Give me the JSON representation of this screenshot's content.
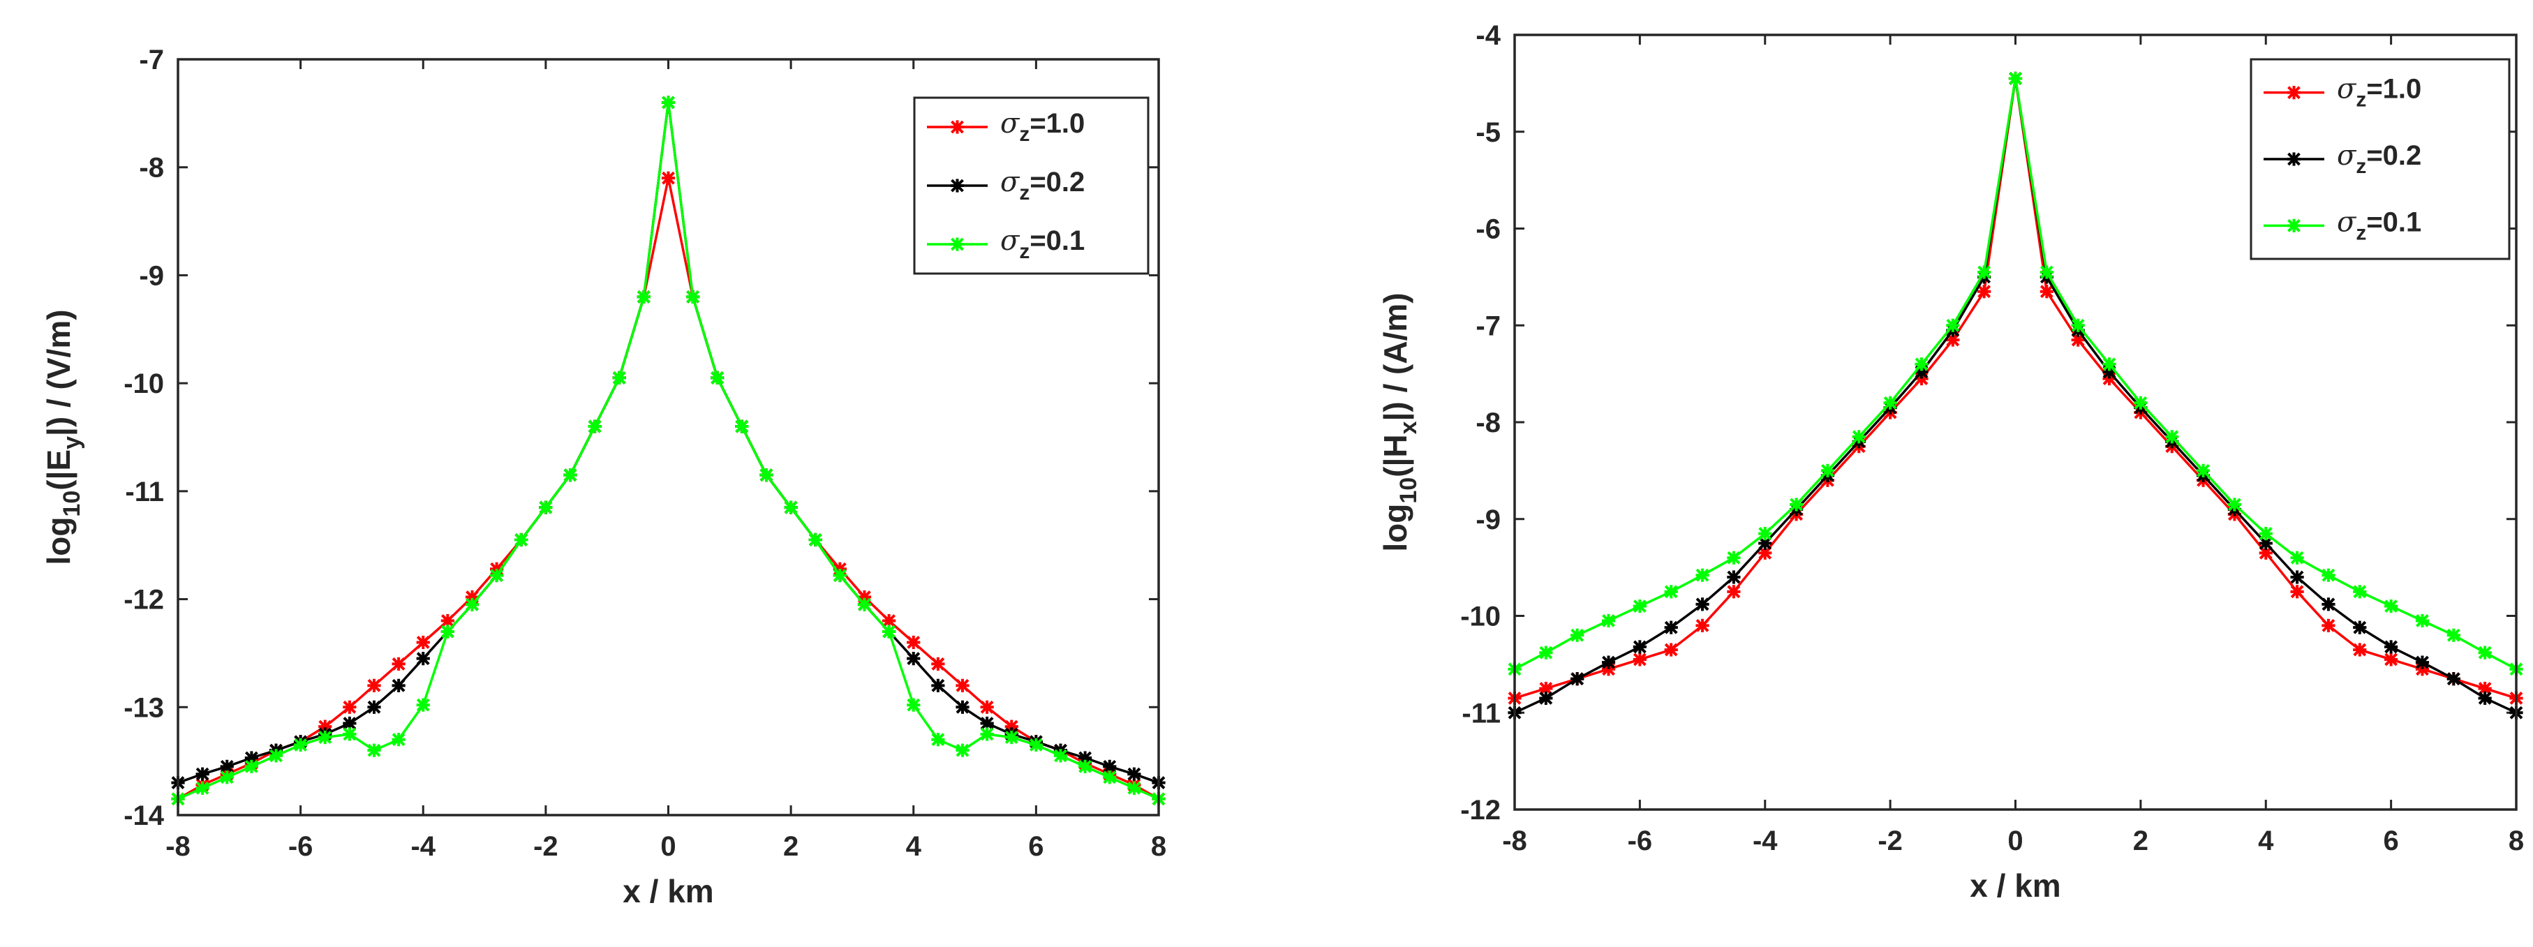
{
  "chart_data": [
    {
      "type": "line",
      "ylabel_parts": {
        "pre": "log",
        "sub10": "10",
        "mid": "(|E",
        "subvar": "y",
        "post": "|) / (V/m)"
      },
      "ylabel": "log10(|Ey|) / (V/m)",
      "xlabel": "x / km",
      "xlim": [
        -8,
        8
      ],
      "ylim": [
        -14,
        -7
      ],
      "xticks": [
        -8,
        -6,
        -4,
        -2,
        0,
        2,
        4,
        6,
        8
      ],
      "yticks": [
        -14,
        -13,
        -12,
        -11,
        -10,
        -9,
        -8,
        -7
      ],
      "legend_position": "top-right",
      "x": [
        -8.0,
        -7.6,
        -7.2,
        -6.8,
        -6.4,
        -6.0,
        -5.6,
        -5.2,
        -4.8,
        -4.4,
        -4.0,
        -3.6,
        -3.2,
        -2.8,
        -2.4,
        -2.0,
        -1.6,
        -1.2,
        -0.8,
        -0.4,
        0.0,
        0.4,
        0.8,
        1.2,
        1.6,
        2.0,
        2.4,
        2.8,
        3.2,
        3.6,
        4.0,
        4.4,
        4.8,
        5.2,
        5.6,
        6.0,
        6.4,
        6.8,
        7.2,
        7.6,
        8.0
      ],
      "series": [
        {
          "name": "σz=1.0",
          "label_parts": {
            "sym": "σ",
            "sub": "z",
            "val": "=1.0"
          },
          "color": "#ff0000",
          "values": [
            -13.85,
            -13.72,
            -13.62,
            -13.52,
            -13.4,
            -13.32,
            -13.18,
            -13.0,
            -12.8,
            -12.6,
            -12.4,
            -12.2,
            -11.98,
            -11.72,
            -11.45,
            -11.15,
            -10.85,
            -10.4,
            -9.95,
            -9.2,
            -8.1,
            -9.2,
            -9.95,
            -10.4,
            -10.85,
            -11.15,
            -11.45,
            -11.72,
            -11.98,
            -12.2,
            -12.4,
            -12.6,
            -12.8,
            -13.0,
            -13.18,
            -13.32,
            -13.4,
            -13.52,
            -13.62,
            -13.72,
            -13.85
          ]
        },
        {
          "name": "σz=0.2",
          "label_parts": {
            "sym": "σ",
            "sub": "z",
            "val": "=0.2"
          },
          "color": "#000000",
          "values": [
            -13.7,
            -13.62,
            -13.55,
            -13.47,
            -13.4,
            -13.32,
            -13.25,
            -13.15,
            -13.0,
            -12.8,
            -12.55,
            -12.3,
            -12.05,
            -11.78,
            -11.45,
            -11.15,
            -10.85,
            -10.4,
            -9.95,
            -9.2,
            -7.4,
            -9.2,
            -9.95,
            -10.4,
            -10.85,
            -11.15,
            -11.45,
            -11.78,
            -12.05,
            -12.3,
            -12.55,
            -12.8,
            -13.0,
            -13.15,
            -13.25,
            -13.32,
            -13.4,
            -13.47,
            -13.55,
            -13.62,
            -13.7
          ]
        },
        {
          "name": "σz=0.1",
          "label_parts": {
            "sym": "σ",
            "sub": "z",
            "val": "=0.1"
          },
          "color": "#00ff00",
          "values": [
            -13.85,
            -13.75,
            -13.65,
            -13.55,
            -13.45,
            -13.35,
            -13.28,
            -13.25,
            -13.4,
            -13.3,
            -12.98,
            -12.3,
            -12.05,
            -11.78,
            -11.45,
            -11.15,
            -10.85,
            -10.4,
            -9.95,
            -9.2,
            -7.4,
            -9.2,
            -9.95,
            -10.4,
            -10.85,
            -11.15,
            -11.45,
            -11.78,
            -12.05,
            -12.3,
            -12.98,
            -13.3,
            -13.4,
            -13.25,
            -13.28,
            -13.35,
            -13.45,
            -13.55,
            -13.65,
            -13.75,
            -13.85
          ]
        }
      ]
    },
    {
      "type": "line",
      "ylabel_parts": {
        "pre": "log",
        "sub10": "10",
        "mid": "(|H",
        "subvar": "x",
        "post": "|) / (A/m)"
      },
      "ylabel": "log10(|Hx|) / (A/m)",
      "xlabel": "x / km",
      "xlim": [
        -8,
        8
      ],
      "ylim": [
        -12,
        -4
      ],
      "xticks": [
        -8,
        -6,
        -4,
        -2,
        0,
        2,
        4,
        6,
        8
      ],
      "yticks": [
        -12,
        -11,
        -10,
        -9,
        -8,
        -7,
        -6,
        -5,
        -4
      ],
      "legend_position": "top-right",
      "x": [
        -8.0,
        -7.5,
        -7.0,
        -6.5,
        -6.0,
        -5.5,
        -5.0,
        -4.5,
        -4.0,
        -3.5,
        -3.0,
        -2.5,
        -2.0,
        -1.5,
        -1.0,
        -0.5,
        0.0,
        0.5,
        1.0,
        1.5,
        2.0,
        2.5,
        3.0,
        3.5,
        4.0,
        4.5,
        5.0,
        5.5,
        6.0,
        6.5,
        7.0,
        7.5,
        8.0
      ],
      "series": [
        {
          "name": "σz=1.0",
          "label_parts": {
            "sym": "σ",
            "sub": "z",
            "val": "=1.0"
          },
          "color": "#ff0000",
          "values": [
            -10.85,
            -10.75,
            -10.65,
            -10.55,
            -10.45,
            -10.35,
            -10.1,
            -9.75,
            -9.35,
            -8.95,
            -8.6,
            -8.25,
            -7.9,
            -7.55,
            -7.15,
            -6.65,
            -4.45,
            -6.65,
            -7.15,
            -7.55,
            -7.9,
            -8.25,
            -8.6,
            -8.95,
            -9.35,
            -9.75,
            -10.1,
            -10.35,
            -10.45,
            -10.55,
            -10.65,
            -10.75,
            -10.85
          ]
        },
        {
          "name": "σz=0.2",
          "label_parts": {
            "sym": "σ",
            "sub": "z",
            "val": "=0.2"
          },
          "color": "#000000",
          "values": [
            -11.0,
            -10.85,
            -10.65,
            -10.48,
            -10.32,
            -10.12,
            -9.88,
            -9.6,
            -9.25,
            -8.9,
            -8.55,
            -8.2,
            -7.85,
            -7.48,
            -7.05,
            -6.5,
            -4.45,
            -6.5,
            -7.05,
            -7.48,
            -7.85,
            -8.2,
            -8.55,
            -8.9,
            -9.25,
            -9.6,
            -9.88,
            -10.12,
            -10.32,
            -10.48,
            -10.65,
            -10.85,
            -11.0
          ]
        },
        {
          "name": "σz=0.1",
          "label_parts": {
            "sym": "σ",
            "sub": "z",
            "val": "=0.1"
          },
          "color": "#00ff00",
          "values": [
            -10.55,
            -10.38,
            -10.2,
            -10.05,
            -9.9,
            -9.75,
            -9.58,
            -9.4,
            -9.15,
            -8.85,
            -8.5,
            -8.15,
            -7.8,
            -7.4,
            -7.0,
            -6.45,
            -4.45,
            -6.45,
            -7.0,
            -7.4,
            -7.8,
            -8.15,
            -8.5,
            -8.85,
            -9.15,
            -9.4,
            -9.58,
            -9.75,
            -9.9,
            -10.05,
            -10.2,
            -10.38,
            -10.55
          ]
        }
      ]
    }
  ]
}
